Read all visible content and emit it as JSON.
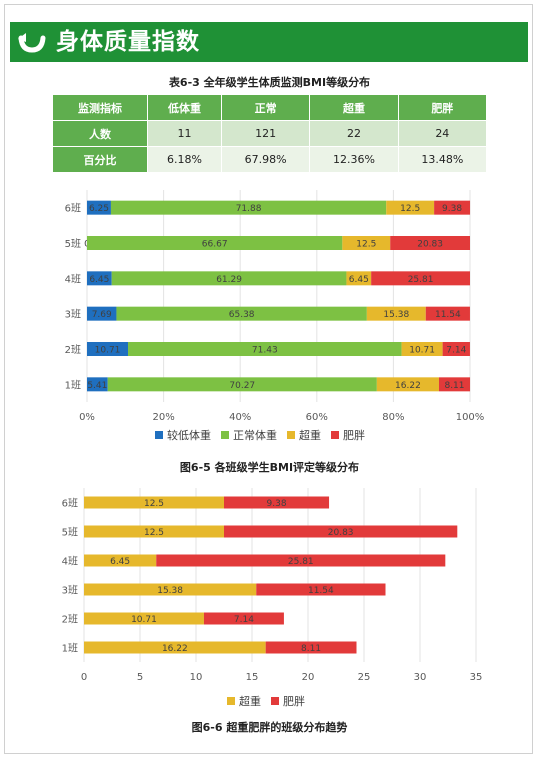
{
  "header": {
    "title": "身体质量指数",
    "icon": "curved-arrow-icon"
  },
  "table": {
    "title": "表6-3   全年级学生体质监测BMI等级分布",
    "columns": [
      "监测指标",
      "低体重",
      "正常",
      "超重",
      "肥胖"
    ],
    "rows": [
      {
        "label": "人数",
        "values": [
          "11",
          "121",
          "22",
          "24"
        ]
      },
      {
        "label": "百分比",
        "values": [
          "6.18%",
          "67.98%",
          "12.36%",
          "13.48%"
        ]
      }
    ]
  },
  "colors": {
    "header": "#1f9136",
    "blue": "#1f6fbf",
    "green": "#7dc143",
    "yellow": "#e6b82c",
    "red": "#e23a3a"
  },
  "chart_data": [
    {
      "type": "bar",
      "orientation": "horizontal",
      "stacked": true,
      "caption": "图6-5   各班级学生BMI评定等级分布",
      "categories": [
        "1班",
        "2班",
        "3班",
        "4班",
        "5班",
        "6班"
      ],
      "series": [
        {
          "name": "较低体重",
          "color": "#1f6fbf",
          "values": [
            5.41,
            10.71,
            7.69,
            6.45,
            0,
            6.25
          ],
          "labels": [
            "5.41",
            "10.71",
            "7.69",
            "6.45",
            "0",
            "6.25"
          ]
        },
        {
          "name": "正常体重",
          "color": "#7dc143",
          "values": [
            70.27,
            71.43,
            65.38,
            61.29,
            66.67,
            71.88
          ],
          "labels": [
            "70.27",
            "71.43",
            "65.38",
            "61.29",
            "66.67",
            "71.88"
          ]
        },
        {
          "name": "超重",
          "color": "#e6b82c",
          "values": [
            16.22,
            10.71,
            15.38,
            6.45,
            12.5,
            12.5
          ],
          "labels": [
            "16.22",
            "10.71",
            "15.38",
            "6.45",
            "12.5",
            "12.5"
          ]
        },
        {
          "name": "肥胖",
          "color": "#e23a3a",
          "values": [
            8.11,
            7.14,
            11.54,
            25.81,
            20.83,
            9.38
          ],
          "labels": [
            "8.11",
            "7.14",
            "11.54",
            "25.81",
            "20.83",
            "9.38"
          ]
        }
      ],
      "xlim": [
        0,
        100
      ],
      "xticks": [
        "0%",
        "20%",
        "40%",
        "60%",
        "80%",
        "100%"
      ],
      "grid": true,
      "legend": "bottom"
    },
    {
      "type": "bar",
      "orientation": "horizontal",
      "stacked": true,
      "caption": "图6-6   超重肥胖的班级分布趋势",
      "categories": [
        "1班",
        "2班",
        "3班",
        "4班",
        "5班",
        "6班"
      ],
      "series": [
        {
          "name": "超重",
          "color": "#e6b82c",
          "values": [
            16.22,
            10.71,
            15.38,
            6.45,
            12.5,
            12.5
          ],
          "labels": [
            "16.22",
            "10.71",
            "15.38",
            "6.45",
            "12.5",
            "12.5"
          ]
        },
        {
          "name": "肥胖",
          "color": "#e23a3a",
          "values": [
            8.11,
            7.14,
            11.54,
            25.81,
            20.83,
            9.38
          ],
          "labels": [
            "8.11",
            "7.14",
            "11.54",
            "25.81",
            "20.83",
            "9.38"
          ]
        }
      ],
      "xlim": [
        0,
        35
      ],
      "xticks": [
        "0",
        "5",
        "10",
        "15",
        "20",
        "25",
        "30",
        "35"
      ],
      "grid": true,
      "legend": "bottom"
    }
  ]
}
